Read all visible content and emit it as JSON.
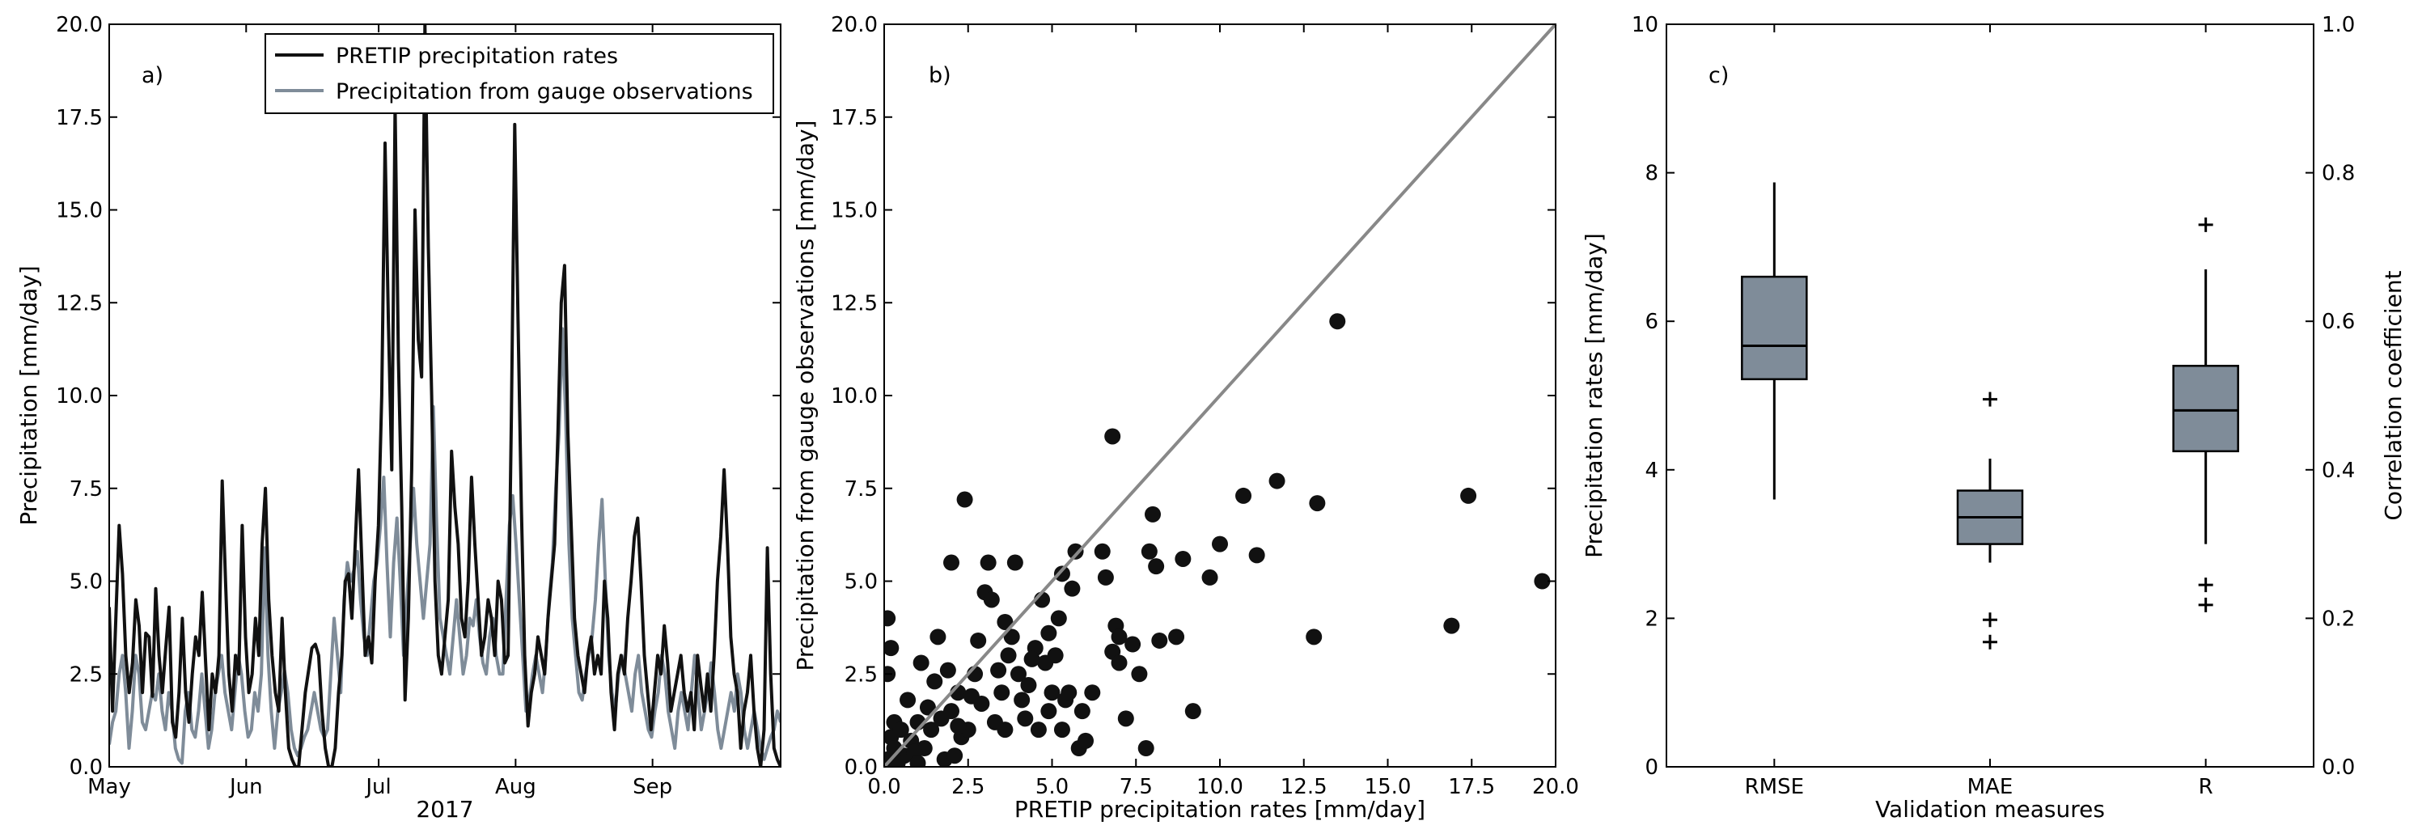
{
  "chart_data": [
    {
      "type": "line",
      "panel_label": "a)",
      "xlabel": "2017",
      "ylabel": "Precipitation [mm/day]",
      "ylim": [
        0,
        20
      ],
      "yticks": [
        "0.0",
        "2.5",
        "5.0",
        "7.5",
        "10.0",
        "12.5",
        "15.0",
        "17.5",
        "20.0"
      ],
      "xlim": [
        "2017-05-01",
        "2017-09-30"
      ],
      "xticks": [
        {
          "label": "May",
          "date": "2017-05-01"
        },
        {
          "label": "Jun",
          "date": "2017-06-01"
        },
        {
          "label": "Jul",
          "date": "2017-07-01"
        },
        {
          "label": "Aug",
          "date": "2017-08-01"
        },
        {
          "label": "Sep",
          "date": "2017-09-01"
        }
      ],
      "legend_position": "top-right",
      "series": [
        {
          "name": "PRETIP precipitation rates",
          "color": "#111111",
          "values": [
            4.3,
            1.5,
            4.0,
            6.5,
            5.2,
            3.0,
            2.0,
            2.8,
            4.5,
            3.8,
            2.0,
            3.6,
            3.5,
            1.9,
            4.8,
            3.0,
            2.0,
            3.2,
            4.3,
            1.2,
            0.8,
            2.0,
            4.0,
            2.0,
            1.2,
            2.5,
            3.5,
            3.0,
            4.7,
            2.8,
            1.0,
            2.5,
            2.0,
            3.0,
            7.7,
            5.0,
            2.5,
            1.5,
            3.0,
            2.5,
            6.5,
            3.5,
            2.0,
            2.5,
            4.0,
            3.0,
            6.0,
            7.5,
            4.5,
            3.0,
            2.0,
            1.5,
            4.0,
            2.0,
            0.5,
            0.2,
            0.0,
            0.0,
            1.0,
            2.0,
            2.6,
            3.2,
            3.3,
            3.0,
            1.5,
            0.5,
            0.0,
            0.0,
            0.5,
            2.0,
            3.0,
            5.0,
            5.2,
            4.0,
            6.0,
            8.0,
            5.5,
            3.0,
            3.5,
            2.8,
            5.0,
            6.5,
            10.0,
            16.8,
            12.0,
            8.0,
            17.8,
            11.0,
            7.0,
            1.8,
            4.0,
            8.0,
            15.0,
            11.5,
            10.5,
            20.0,
            14.0,
            10.0,
            5.0,
            3.0,
            2.5,
            3.5,
            4.5,
            8.5,
            7.0,
            6.0,
            4.0,
            3.5,
            5.0,
            7.8,
            6.0,
            4.5,
            3.0,
            3.5,
            4.5,
            4.0,
            3.0,
            5.0,
            4.5,
            2.8,
            3.0,
            9.5,
            17.3,
            12.0,
            7.0,
            3.0,
            1.1,
            2.0,
            2.5,
            3.5,
            3.0,
            2.5,
            4.0,
            5.0,
            6.0,
            9.0,
            12.5,
            13.5,
            9.0,
            6.5,
            4.0,
            3.0,
            2.5,
            2.0,
            3.0,
            3.5,
            2.5,
            3.0,
            2.5,
            5.0,
            4.0,
            2.0,
            1.0,
            2.5,
            3.0,
            2.5,
            4.0,
            5.0,
            6.2,
            6.7,
            5.0,
            3.0,
            2.0,
            1.0,
            2.0,
            3.0,
            2.5,
            3.8,
            2.8,
            1.5,
            2.0,
            2.5,
            3.0,
            2.0,
            1.5,
            2.0,
            1.0,
            3.0,
            2.2,
            1.5,
            2.5,
            1.5,
            3.0,
            5.0,
            6.2,
            8.0,
            6.0,
            3.5,
            2.5,
            2.0,
            0.5,
            1.5,
            2.0,
            3.0,
            1.5,
            0.5,
            0.0,
            1.0,
            5.9,
            2.5,
            0.5,
            0.2,
            0.0
          ]
        },
        {
          "name": "Precipitation from gauge observations",
          "color": "#7f8c99",
          "values": [
            0.6,
            1.2,
            1.5,
            2.5,
            3.0,
            2.0,
            0.5,
            1.5,
            3.0,
            2.5,
            1.2,
            1.0,
            1.5,
            2.0,
            1.8,
            2.5,
            1.5,
            1.0,
            2.0,
            1.5,
            0.5,
            0.2,
            0.1,
            1.5,
            2.0,
            1.0,
            0.8,
            1.5,
            2.5,
            1.5,
            0.5,
            1.0,
            2.0,
            2.5,
            3.0,
            2.0,
            1.5,
            1.0,
            2.0,
            3.0,
            2.5,
            1.5,
            0.8,
            1.0,
            2.0,
            1.5,
            2.5,
            5.9,
            3.0,
            1.5,
            0.5,
            1.5,
            2.0,
            2.6,
            2.0,
            1.0,
            0.5,
            0.3,
            0.5,
            0.8,
            1.0,
            1.5,
            2.0,
            1.5,
            1.0,
            0.8,
            1.0,
            2.5,
            4.0,
            3.0,
            2.0,
            4.5,
            5.5,
            5.0,
            5.3,
            5.8,
            4.5,
            3.5,
            3.0,
            4.0,
            5.0,
            5.5,
            6.5,
            7.8,
            5.5,
            3.5,
            5.5,
            6.7,
            5.0,
            3.0,
            4.5,
            6.0,
            7.5,
            6.0,
            5.0,
            4.0,
            5.0,
            6.0,
            9.7,
            6.5,
            4.0,
            3.5,
            3.0,
            2.5,
            3.5,
            4.5,
            3.5,
            2.5,
            3.0,
            4.0,
            3.8,
            4.5,
            3.5,
            2.8,
            2.5,
            3.5,
            4.0,
            3.0,
            2.5,
            2.5,
            4.5,
            6.5,
            7.3,
            6.0,
            4.5,
            3.0,
            1.5,
            1.8,
            2.5,
            3.0,
            2.5,
            2.0,
            3.0,
            4.5,
            5.5,
            7.5,
            9.0,
            11.8,
            9.5,
            6.0,
            4.0,
            3.0,
            2.0,
            1.8,
            2.5,
            3.0,
            3.5,
            4.5,
            6.0,
            7.2,
            5.0,
            3.0,
            2.0,
            1.5,
            2.5,
            3.0,
            2.5,
            2.0,
            1.5,
            2.5,
            3.0,
            2.0,
            1.5,
            1.0,
            0.8,
            1.5,
            2.0,
            3.0,
            2.5,
            1.5,
            1.0,
            0.5,
            1.5,
            2.0,
            1.5,
            1.0,
            2.0,
            3.0,
            2.0,
            1.0,
            1.5,
            2.0,
            2.8,
            2.0,
            1.0,
            0.5,
            1.0,
            1.5,
            2.0,
            1.5,
            2.5,
            2.0,
            1.0,
            0.5,
            1.0,
            1.5,
            1.0,
            0.5,
            0.2,
            0.5,
            0.8,
            1.0,
            1.5,
            1.2
          ]
        }
      ]
    },
    {
      "type": "scatter",
      "panel_label": "b)",
      "xlabel": "PRETIP precipitation rates [mm/day]",
      "ylabel": "Precipitation from gauge observations [mm/day]",
      "xlim": [
        0,
        20
      ],
      "ylim": [
        0,
        20
      ],
      "xticks": [
        "0.0",
        "2.5",
        "5.0",
        "7.5",
        "10.0",
        "12.5",
        "15.0",
        "17.5",
        "20.0"
      ],
      "yticks": [
        "0.0",
        "2.5",
        "5.0",
        "7.5",
        "10.0",
        "12.5",
        "15.0",
        "17.5",
        "20.0"
      ],
      "reference_line": {
        "color": "#888888",
        "from": [
          0,
          0
        ],
        "to": [
          20,
          20
        ]
      },
      "point_color": "#111111",
      "points": [
        [
          0.1,
          0.2
        ],
        [
          0.2,
          0.8
        ],
        [
          0.3,
          1.2
        ],
        [
          0.1,
          2.5
        ],
        [
          0.2,
          3.2
        ],
        [
          0.1,
          4.0
        ],
        [
          0.3,
          0.5
        ],
        [
          0.5,
          1.0
        ],
        [
          0.6,
          0.3
        ],
        [
          0.8,
          0.7
        ],
        [
          1.0,
          1.2
        ],
        [
          1.2,
          0.5
        ],
        [
          1.4,
          1.0
        ],
        [
          1.5,
          2.3
        ],
        [
          1.7,
          1.3
        ],
        [
          1.8,
          0.2
        ],
        [
          2.0,
          1.5
        ],
        [
          2.2,
          2.0
        ],
        [
          2.3,
          0.8
        ],
        [
          2.5,
          1.0
        ],
        [
          2.0,
          5.5
        ],
        [
          2.4,
          7.2
        ],
        [
          2.7,
          2.5
        ],
        [
          2.9,
          1.7
        ],
        [
          3.0,
          4.7
        ],
        [
          3.1,
          5.5
        ],
        [
          3.2,
          4.5
        ],
        [
          3.3,
          1.2
        ],
        [
          3.5,
          2.0
        ],
        [
          3.6,
          1.0
        ],
        [
          3.7,
          3.0
        ],
        [
          3.8,
          3.5
        ],
        [
          3.9,
          5.5
        ],
        [
          4.0,
          2.5
        ],
        [
          4.1,
          1.8
        ],
        [
          4.2,
          1.3
        ],
        [
          4.3,
          2.2
        ],
        [
          4.5,
          3.2
        ],
        [
          4.6,
          1.0
        ],
        [
          4.7,
          4.5
        ],
        [
          4.8,
          2.8
        ],
        [
          4.9,
          1.5
        ],
        [
          5.0,
          2.0
        ],
        [
          5.1,
          3.0
        ],
        [
          5.2,
          4.0
        ],
        [
          5.3,
          5.2
        ],
        [
          5.4,
          1.8
        ],
        [
          5.5,
          2.0
        ],
        [
          5.6,
          4.8
        ],
        [
          5.7,
          5.8
        ],
        [
          5.8,
          0.5
        ],
        [
          5.9,
          1.5
        ],
        [
          6.0,
          0.7
        ],
        [
          6.2,
          2.0
        ],
        [
          6.5,
          5.8
        ],
        [
          6.6,
          5.1
        ],
        [
          6.8,
          3.1
        ],
        [
          6.9,
          3.8
        ],
        [
          7.0,
          3.5
        ],
        [
          6.8,
          8.9
        ],
        [
          7.0,
          2.8
        ],
        [
          7.2,
          1.3
        ],
        [
          7.4,
          3.3
        ],
        [
          7.6,
          2.5
        ],
        [
          7.8,
          0.5
        ],
        [
          7.9,
          5.8
        ],
        [
          8.0,
          6.8
        ],
        [
          8.1,
          5.4
        ],
        [
          8.2,
          3.4
        ],
        [
          8.7,
          3.5
        ],
        [
          8.9,
          5.6
        ],
        [
          9.2,
          1.5
        ],
        [
          9.7,
          5.1
        ],
        [
          10.0,
          6.0
        ],
        [
          10.7,
          7.3
        ],
        [
          11.1,
          5.7
        ],
        [
          11.7,
          7.7
        ],
        [
          12.8,
          3.5
        ],
        [
          12.9,
          7.1
        ],
        [
          13.5,
          12.0
        ],
        [
          16.9,
          3.8
        ],
        [
          17.4,
          7.3
        ],
        [
          19.6,
          5.0
        ],
        [
          0.4,
          0.1
        ],
        [
          0.7,
          1.8
        ],
        [
          0.9,
          0.4
        ],
        [
          1.1,
          2.8
        ],
        [
          1.3,
          1.6
        ],
        [
          1.6,
          3.5
        ],
        [
          1.9,
          2.6
        ],
        [
          2.1,
          0.3
        ],
        [
          2.6,
          1.9
        ],
        [
          2.8,
          3.4
        ],
        [
          3.4,
          2.6
        ],
        [
          3.6,
          3.9
        ],
        [
          4.4,
          2.9
        ],
        [
          4.9,
          3.6
        ],
        [
          5.3,
          1.0
        ],
        [
          2.2,
          1.1
        ],
        [
          1.0,
          0.1
        ]
      ]
    },
    {
      "type": "box",
      "panel_label": "c)",
      "xlabel": "Validation measures",
      "ylabel": "Precipitation rates [mm/day]",
      "y2label": "Correlation coefficient",
      "ylim": [
        0,
        10
      ],
      "y2lim": [
        0,
        1
      ],
      "yticks": [
        "0",
        "2",
        "4",
        "6",
        "8",
        "10"
      ],
      "y2ticks": [
        "0.0",
        "0.2",
        "0.4",
        "0.6",
        "0.8",
        "1.0"
      ],
      "box_color": "#7f8c99",
      "categories": [
        "RMSE",
        "MAE",
        "R"
      ],
      "boxes": [
        {
          "name": "RMSE",
          "axis": "left",
          "q1": 5.22,
          "median": 5.67,
          "q3": 6.6,
          "whisker_low": 3.6,
          "whisker_high": 7.87,
          "outliers": []
        },
        {
          "name": "MAE",
          "axis": "left",
          "q1": 3.0,
          "median": 3.36,
          "q3": 3.72,
          "whisker_low": 2.75,
          "whisker_high": 4.15,
          "outliers": [
            4.95,
            1.98,
            1.68
          ]
        },
        {
          "name": "R",
          "axis": "right",
          "q1": 0.425,
          "median": 0.48,
          "q3": 0.54,
          "whisker_low": 0.3,
          "whisker_high": 0.67,
          "outliers": [
            0.73,
            0.245,
            0.218
          ]
        }
      ]
    }
  ]
}
